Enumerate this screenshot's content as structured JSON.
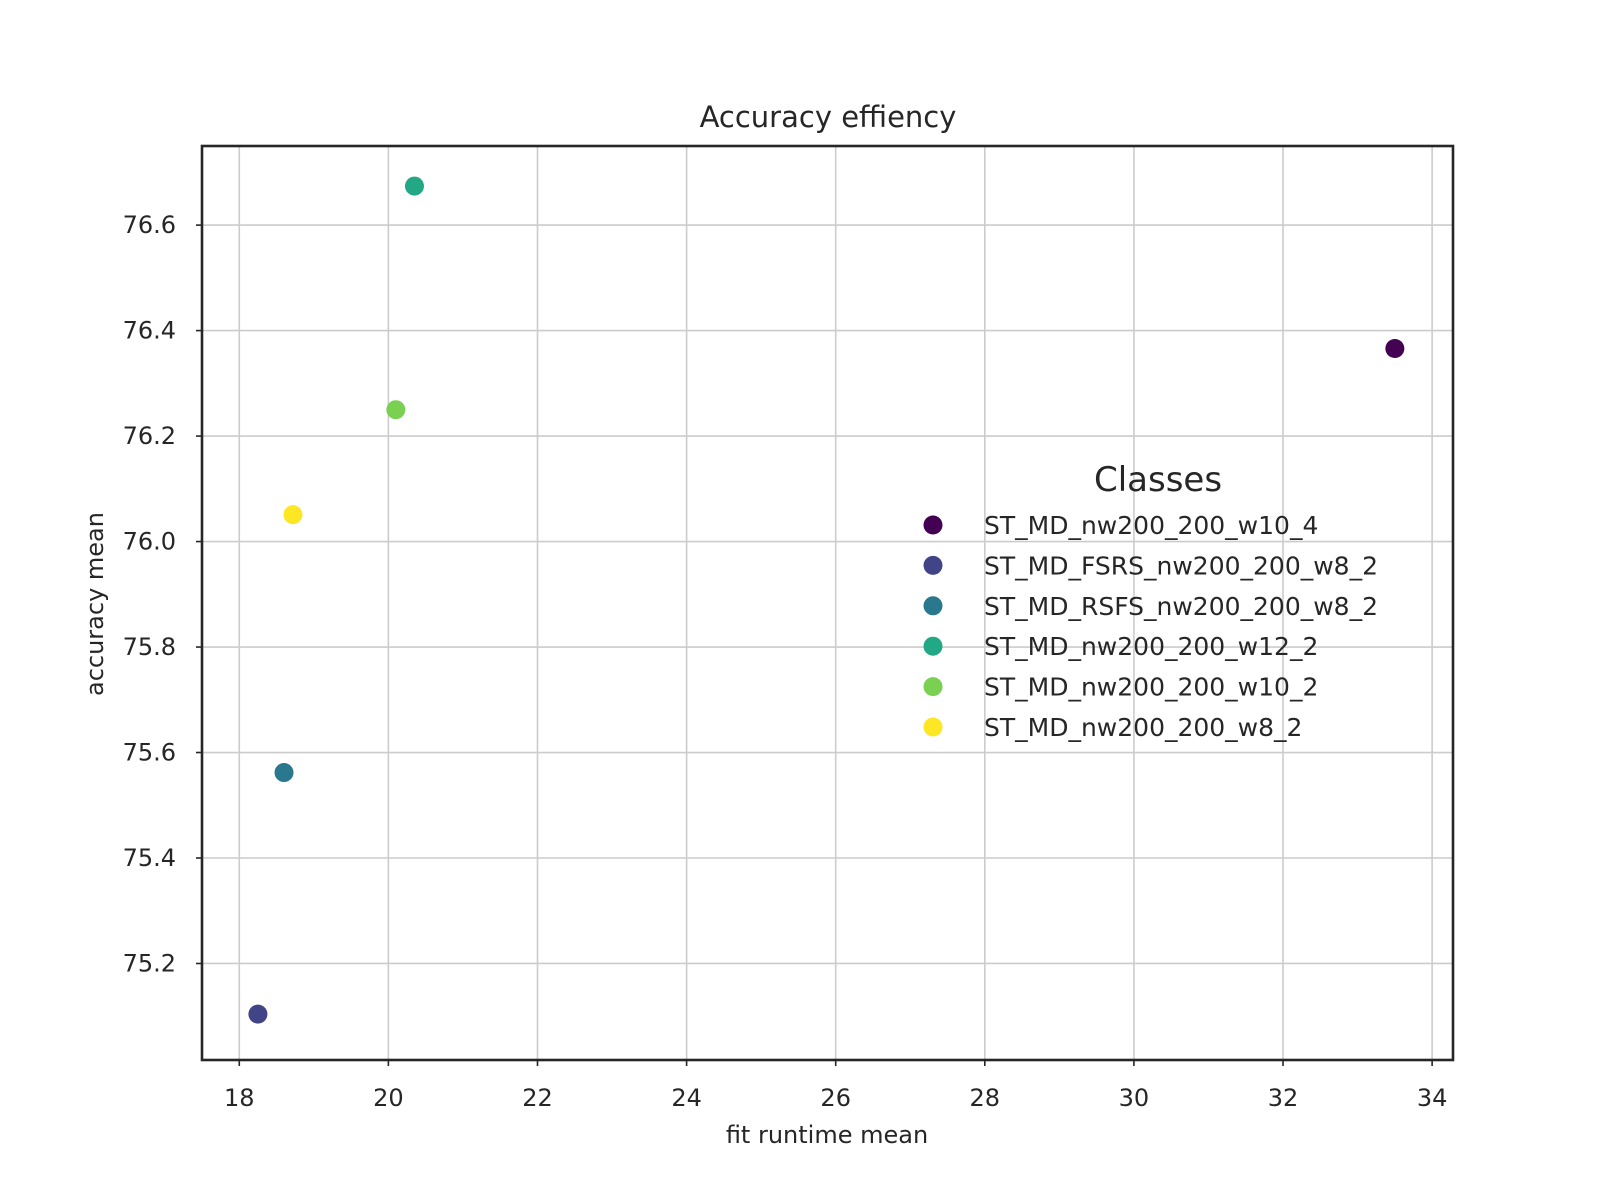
{
  "chart_data": {
    "type": "scatter",
    "title": "Accuracy effiency",
    "xlabel": "fit runtime mean",
    "ylabel": "accuracy mean",
    "xlim": [
      17.5,
      34.28
    ],
    "ylim": [
      75.017,
      76.75
    ],
    "xticks": [
      18,
      20,
      22,
      24,
      26,
      28,
      30,
      32,
      34
    ],
    "yticks": [
      75.2,
      75.4,
      75.6,
      75.8,
      76.0,
      76.2,
      76.4,
      76.6
    ],
    "ytick_labels": [
      "75.2",
      "75.4",
      "75.6",
      "75.8",
      "76.0",
      "76.2",
      "76.4",
      "76.6"
    ],
    "grid": true,
    "legend": {
      "title": "Classes",
      "placement": "center-right"
    },
    "series": [
      {
        "name": "ST_MD_nw200_200_w10_4",
        "color": "#440154",
        "points": [
          {
            "x": 33.5,
            "y": 76.366
          }
        ]
      },
      {
        "name": "ST_MD_FSRS_nw200_200_w8_2",
        "color": "#414487",
        "points": [
          {
            "x": 18.25,
            "y": 75.104
          }
        ]
      },
      {
        "name": "ST_MD_RSFS_nw200_200_w8_2",
        "color": "#2a788e",
        "points": [
          {
            "x": 18.6,
            "y": 75.562
          }
        ]
      },
      {
        "name": "ST_MD_nw200_200_w12_2",
        "color": "#22a884",
        "points": [
          {
            "x": 20.35,
            "y": 76.674
          }
        ]
      },
      {
        "name": "ST_MD_nw200_200_w10_2",
        "color": "#7ad151",
        "points": [
          {
            "x": 20.1,
            "y": 76.25
          }
        ]
      },
      {
        "name": "ST_MD_nw200_200_w8_2",
        "color": "#fde725",
        "points": [
          {
            "x": 18.72,
            "y": 76.051
          }
        ]
      }
    ]
  }
}
